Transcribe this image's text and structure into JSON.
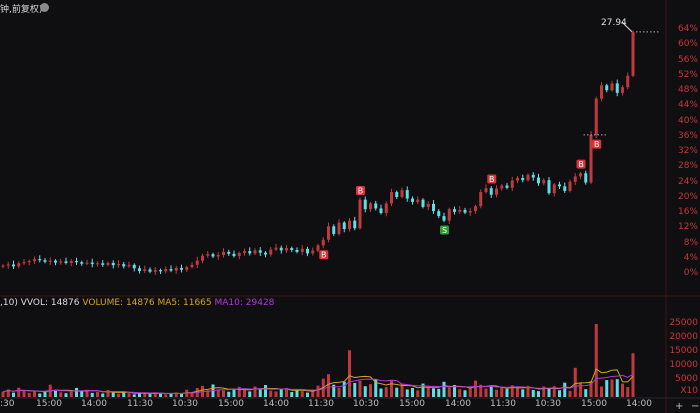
{
  "header": {
    "title": "钟,前复权)"
  },
  "legend": {
    "params": ",10)",
    "vvol": "VVOL: 14876",
    "volume": "VOLUME: 14876",
    "ma5": "MA5: 11665",
    "ma10": "MA10: 29428"
  },
  "colors": {
    "background": "#0f0f12",
    "up": "#c0393b",
    "down": "#5ce0e6",
    "ma5": "#d4a51c",
    "ma10": "#b03ad8",
    "axis": "#c8353a"
  },
  "controls": {
    "plus": "+",
    "minus": "−"
  },
  "chart_data": [
    {
      "type": "candlestick",
      "title": "",
      "y_unit": "%",
      "ylim": [
        0,
        64
      ],
      "y_ticks": [
        "64%",
        "60%",
        "56%",
        "52%",
        "48%",
        "44%",
        "40%",
        "36%",
        "32%",
        "28%",
        "24%",
        "20%",
        "16%",
        "12%",
        "8%",
        "4%",
        "0%"
      ],
      "x_ticks": [
        ":30",
        "15:00",
        "14:00",
        "11:30",
        "10:30",
        "15:00",
        "14:00",
        "11:30",
        "10:30",
        "15:00",
        "14:00",
        "11:30",
        "10:30",
        "15:00",
        "14:00"
      ],
      "closes": [
        2.2,
        2.5,
        2.0,
        2.8,
        3.1,
        3.4,
        3.9,
        3.6,
        3.2,
        3.5,
        3.0,
        3.3,
        2.9,
        3.4,
        3.1,
        2.7,
        3.0,
        2.6,
        2.8,
        2.4,
        2.9,
        2.3,
        2.6,
        2.0,
        2.4,
        1.5,
        0.8,
        1.2,
        0.6,
        1.0,
        0.7,
        1.3,
        0.9,
        1.6,
        1.1,
        1.8,
        2.4,
        3.5,
        4.8,
        5.2,
        4.6,
        5.0,
        5.8,
        5.3,
        4.7,
        5.5,
        6.0,
        5.4,
        6.2,
        5.6,
        5.1,
        6.4,
        6.9,
        6.2,
        6.8,
        6.3,
        5.8,
        6.6,
        5.4,
        6.1,
        7.5,
        9.0,
        12.5,
        10.5,
        13.5,
        11.8,
        14.0,
        12.0,
        19.5,
        17.0,
        18.5,
        17.2,
        16.0,
        18.5,
        21.5,
        20.2,
        22.0,
        19.8,
        18.9,
        19.5,
        17.6,
        18.4,
        16.5,
        15.2,
        14.0,
        17.0,
        16.3,
        16.8,
        16.1,
        16.5,
        17.8,
        21.5,
        22.5,
        20.8,
        22.4,
        23.2,
        22.6,
        24.5,
        25.2,
        24.6,
        26.0,
        25.3,
        23.8,
        24.6,
        21.2,
        23.5,
        23.0,
        21.8,
        24.2,
        25.6,
        26.4,
        24.0,
        36.5,
        46.0,
        49.5,
        48.2,
        50.0,
        47.5,
        49.0,
        52.0,
        63.5
      ],
      "markers": [
        {
          "label": "B",
          "index": 61,
          "side": "below"
        },
        {
          "label": "B",
          "index": 68,
          "side": "above"
        },
        {
          "label": "S",
          "index": 84,
          "side": "below"
        },
        {
          "label": "B",
          "index": 93,
          "side": "above"
        },
        {
          "label": "B",
          "index": 110,
          "side": "above"
        },
        {
          "label": "B",
          "index": 113,
          "side": "below"
        }
      ],
      "price_label": "27.94"
    },
    {
      "type": "bar",
      "title": "",
      "ylim": [
        0,
        25000
      ],
      "y_ticks": [
        "25000",
        "20000",
        "15000",
        "10000",
        "5000",
        "X10"
      ],
      "volumes": [
        1800,
        2600,
        1500,
        3200,
        2200,
        1400,
        1900,
        1200,
        2100,
        4200,
        2300,
        1600,
        1300,
        1800,
        3100,
        2000,
        2500,
        1400,
        1700,
        1200,
        2400,
        1500,
        1100,
        1800,
        1300,
        900,
        1400,
        1200,
        1000,
        1600,
        1300,
        900,
        1100,
        1500,
        1200,
        2500,
        1400,
        3100,
        3800,
        2300,
        4300,
        2600,
        2200,
        1800,
        2700,
        3500,
        2400,
        1900,
        3600,
        2700,
        4100,
        2200,
        1900,
        2600,
        3100,
        1700,
        2300,
        2000,
        1500,
        2400,
        3900,
        6300,
        7800,
        4200,
        3100,
        5200,
        16000,
        4800,
        5600,
        3700,
        4400,
        6100,
        2900,
        3400,
        5800,
        3200,
        4500,
        2600,
        3100,
        2300,
        4600,
        3900,
        3000,
        2800,
        5200,
        3300,
        4100,
        2700,
        2300,
        3100,
        5600,
        4200,
        2900,
        3600,
        2500,
        3300,
        2800,
        4000,
        3000,
        2600,
        3800,
        2400,
        2000,
        3600,
        2900,
        3700,
        2300,
        4900,
        2100,
        10000,
        4800,
        2700,
        5500,
        25000,
        3600,
        5800,
        6000,
        6100,
        4600,
        3400,
        15000
      ]
    }
  ]
}
